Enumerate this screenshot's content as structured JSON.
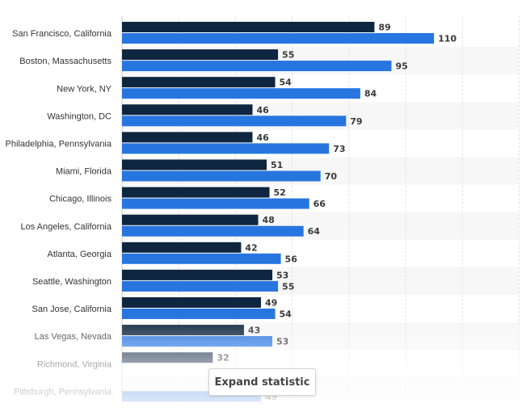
{
  "chart_data": {
    "type": "bar",
    "orientation": "horizontal",
    "categories": [
      "San Francisco, California",
      "Boston, Massachusetts",
      "New York, NY",
      "Washington, DC",
      "Philadelphia, Pennsylvania",
      "Miami, Florida",
      "Chicago, Illinois",
      "Los Angeles, California",
      "Atlanta, Georgia",
      "Seattle, Washington",
      "San Jose, California",
      "Las Vegas, Nevada",
      "Richmond, Virginia",
      "Pittsburgh, Pennsylvania"
    ],
    "series": [
      {
        "color": "#0f2640",
        "values": [
          89,
          55,
          54,
          46,
          46,
          51,
          52,
          48,
          42,
          53,
          49,
          43,
          32,
          null
        ]
      },
      {
        "color": "#2776e0",
        "values": [
          110,
          95,
          84,
          79,
          73,
          70,
          66,
          64,
          56,
          55,
          54,
          53,
          null,
          49
        ]
      }
    ],
    "xlim": [
      0,
      140
    ],
    "grid": true,
    "legend": "none"
  },
  "ui": {
    "expand_label": "Expand statistic"
  }
}
